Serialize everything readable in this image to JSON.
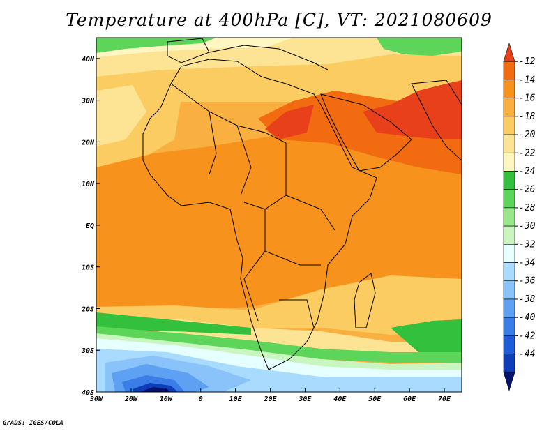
{
  "title": "Temperature at 400hPa [C], VT: 2021080609",
  "footer": "GrADS: IGES/COLA",
  "map": {
    "lon_range": [
      -30,
      75
    ],
    "lat_range": [
      -40,
      45
    ],
    "lat_ticks": [
      {
        "lat": 40,
        "label": "40N"
      },
      {
        "lat": 30,
        "label": "30N"
      },
      {
        "lat": 20,
        "label": "20N"
      },
      {
        "lat": 10,
        "label": "10N"
      },
      {
        "lat": 0,
        "label": "EQ"
      },
      {
        "lat": -10,
        "label": "10S"
      },
      {
        "lat": -20,
        "label": "20S"
      },
      {
        "lat": -30,
        "label": "30S"
      },
      {
        "lat": -40,
        "label": "40S"
      }
    ],
    "lon_ticks": [
      {
        "lon": -30,
        "label": "30W"
      },
      {
        "lon": -20,
        "label": "20W"
      },
      {
        "lon": -10,
        "label": "10W"
      },
      {
        "lon": 0,
        "label": "0"
      },
      {
        "lon": 10,
        "label": "10E"
      },
      {
        "lon": 20,
        "label": "20E"
      },
      {
        "lon": 30,
        "label": "30E"
      },
      {
        "lon": 40,
        "label": "40E"
      },
      {
        "lon": 50,
        "label": "50E"
      },
      {
        "lon": 60,
        "label": "60E"
      },
      {
        "lon": 70,
        "label": "70E"
      }
    ]
  },
  "colorbar": {
    "labels": [
      "-12",
      "-14",
      "-16",
      "-18",
      "-20",
      "-22",
      "-24",
      "-26",
      "-28",
      "-30",
      "-32",
      "-34",
      "-36",
      "-38",
      "-40",
      "-42",
      "-44"
    ],
    "colors": [
      "#e8401a",
      "#f26b10",
      "#f7931c",
      "#f9b040",
      "#fbcc62",
      "#fde495",
      "#fff6c2",
      "#33c13d",
      "#5dd45a",
      "#9ae68c",
      "#c9f5bf",
      "#e6ffff",
      "#a8dbff",
      "#8ac2fa",
      "#5ea1f2",
      "#3a7de6",
      "#1c5cd6",
      "#0e3db8",
      "#06136e"
    ]
  }
}
